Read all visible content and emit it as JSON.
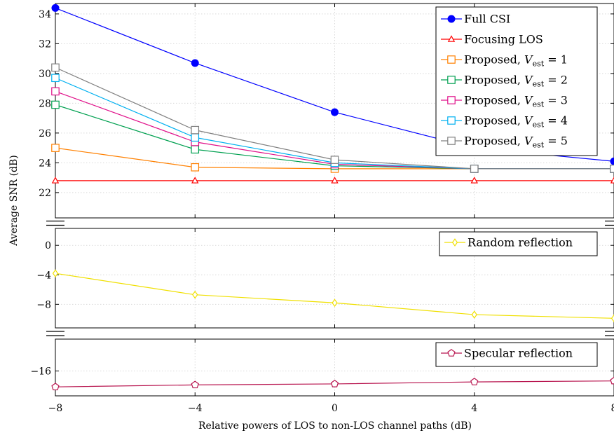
{
  "chart_data": {
    "type": "line",
    "xlabel": "Relative powers of LOS to non-LOS channel paths (dB)",
    "ylabel": "Average SNR (dB)",
    "x": [
      -8,
      -4,
      0,
      4,
      8
    ],
    "xlim": [
      -8,
      8
    ],
    "xticks": [
      "−8",
      "−4",
      "0",
      "4",
      "8"
    ],
    "grid": true,
    "panels": [
      {
        "id": "top",
        "ylim": [
          20.3,
          34.7
        ],
        "yticks": [
          {
            "value": 22,
            "label": "22"
          },
          {
            "value": 24,
            "label": "24"
          },
          {
            "value": 26,
            "label": "26"
          },
          {
            "value": 28,
            "label": "28"
          },
          {
            "value": 30,
            "label": "30"
          },
          {
            "value": 32,
            "label": "32"
          },
          {
            "value": 34,
            "label": "34"
          }
        ],
        "legend_placement": "top-right",
        "series": [
          {
            "name": "Full CSI",
            "color": "#0000ff",
            "marker": "filled-circle",
            "values": [
              34.4,
              30.7,
              27.4,
              25.0,
              24.1
            ]
          },
          {
            "name": "Focusing LOS",
            "color": "#ff0000",
            "marker": "triangle",
            "values": [
              22.8,
              22.8,
              22.8,
              22.8,
              22.8
            ]
          },
          {
            "name": "Proposed, Vest = 1",
            "legend_prefix": "Proposed, ",
            "legend_var": "V",
            "legend_sub": "est",
            "legend_suffix": " = 1",
            "color": "#ff8000",
            "marker": "square",
            "values": [
              25.0,
              23.7,
              23.6,
              23.6,
              23.6
            ]
          },
          {
            "name": "Proposed, Vest = 2",
            "legend_prefix": "Proposed, ",
            "legend_var": "V",
            "legend_sub": "est",
            "legend_suffix": " = 2",
            "color": "#00a050",
            "marker": "square",
            "values": [
              27.9,
              24.9,
              23.8,
              23.6,
              23.6
            ]
          },
          {
            "name": "Proposed, Vest = 3",
            "legend_prefix": "Proposed, ",
            "legend_var": "V",
            "legend_sub": "est",
            "legend_suffix": " = 3",
            "color": "#e0108a",
            "marker": "square",
            "values": [
              28.8,
              25.4,
              23.9,
              23.6,
              23.6
            ]
          },
          {
            "name": "Proposed, Vest = 4",
            "legend_prefix": "Proposed, ",
            "legend_var": "V",
            "legend_sub": "est",
            "legend_suffix": " = 4",
            "color": "#00b0f0",
            "marker": "square",
            "values": [
              29.7,
              25.7,
              24.0,
              23.6,
              23.6
            ]
          },
          {
            "name": "Proposed, Vest = 5",
            "legend_prefix": "Proposed, ",
            "legend_var": "V",
            "legend_sub": "est",
            "legend_suffix": " = 5",
            "color": "#808080",
            "marker": "square",
            "values": [
              30.4,
              26.2,
              24.2,
              23.6,
              23.6
            ]
          }
        ]
      },
      {
        "id": "middle",
        "ylim": [
          -11.2,
          2.3
        ],
        "yticks": [
          {
            "value": 0,
            "label": "0"
          },
          {
            "value": -4,
            "label": "−4"
          },
          {
            "value": -8,
            "label": "−8"
          }
        ],
        "legend_placement": "top-right",
        "series": [
          {
            "name": "Random reflection",
            "color": "#f0e000",
            "marker": "diamond",
            "values": [
              -3.8,
              -6.7,
              -7.8,
              -9.4,
              -9.9
            ]
          }
        ]
      },
      {
        "id": "bottom",
        "ylim": [
          -18.5,
          -12.8
        ],
        "yticks": [
          {
            "value": -16,
            "label": "−16"
          }
        ],
        "legend_placement": "top-right",
        "series": [
          {
            "name": "Specular reflection",
            "color": "#b8154f",
            "marker": "pentagon",
            "values": [
              -17.6,
              -17.4,
              -17.3,
              -17.1,
              -17.0
            ]
          }
        ]
      }
    ]
  }
}
